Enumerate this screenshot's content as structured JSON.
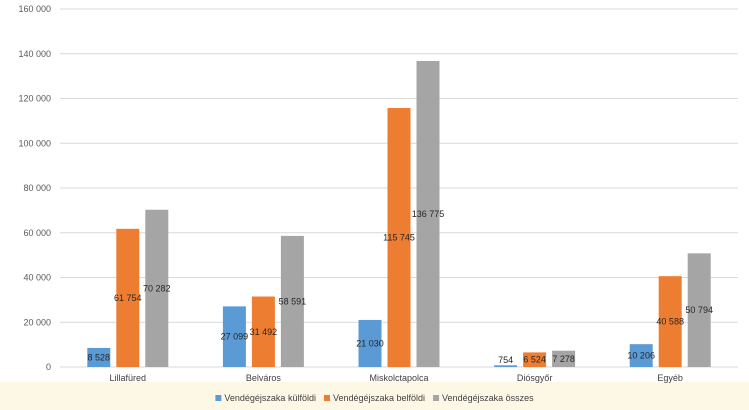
{
  "chart_data": {
    "type": "bar",
    "title": "",
    "xlabel": "",
    "ylabel": "",
    "ylim": [
      0,
      160000
    ],
    "yticks": [
      0,
      20000,
      40000,
      60000,
      80000,
      100000,
      120000,
      140000,
      160000
    ],
    "ytick_labels": [
      "0",
      "20 000",
      "40 000",
      "60 000",
      "80 000",
      "100 000",
      "120 000",
      "140 000",
      "160 000"
    ],
    "grid": true,
    "legend_position": "bottom",
    "categories": [
      "Lillafüred",
      "Belváros",
      "Miskolctapolca",
      "Diósgyőr",
      "Egyéb"
    ],
    "series": [
      {
        "name": "Vendégéjszaka külföldi",
        "color": "#5B9BD5",
        "values": [
          8528,
          27099,
          21030,
          754,
          10206
        ],
        "labels": [
          "8 528",
          "27 099",
          "21 030",
          "754",
          "10 206"
        ]
      },
      {
        "name": "Vendégéjszaka belföldi",
        "color": "#ED7D31",
        "values": [
          61754,
          31492,
          115745,
          6524,
          40588
        ],
        "labels": [
          "61 754",
          "31 492",
          "115 745",
          "6 524",
          "40 588"
        ]
      },
      {
        "name": "Vendégéjszaka összes",
        "color": "#A5A5A5",
        "values": [
          70282,
          58591,
          136775,
          7278,
          50794
        ],
        "labels": [
          "70 282",
          "58 591",
          "136 775",
          "7 278",
          "50 794"
        ]
      }
    ]
  },
  "theme": {
    "grid_color": "#D9D9D9",
    "legend_band_color": "#FDF8E6"
  }
}
